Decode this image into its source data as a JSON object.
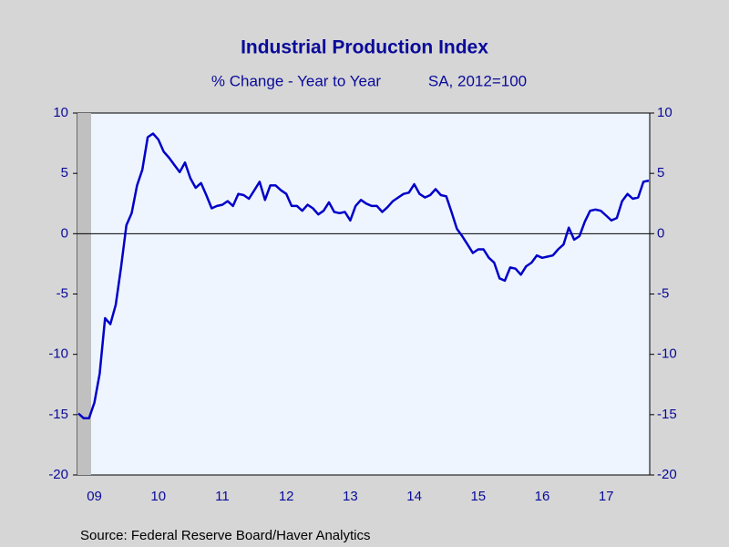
{
  "chart_data": {
    "type": "line",
    "title": "Industrial Production Index",
    "subtitle": "% Change - Year to Year",
    "subtitle_note": "SA, 2012=100",
    "source": "Source:  Federal Reserve Board/Haver Analytics",
    "categories": [
      null,
      null,
      null,
      "09",
      null,
      null,
      null,
      null,
      null,
      null,
      null,
      null,
      null,
      null,
      null,
      "10",
      null,
      null,
      null,
      null,
      null,
      null,
      null,
      null,
      null,
      null,
      null,
      "11",
      null,
      null,
      null,
      null,
      null,
      null,
      null,
      null,
      null,
      null,
      null,
      "12",
      null,
      null,
      null,
      null,
      null,
      null,
      null,
      null,
      null,
      null,
      null,
      "13",
      null,
      null,
      null,
      null,
      null,
      null,
      null,
      null,
      null,
      null,
      null,
      "14",
      null,
      null,
      null,
      null,
      null,
      null,
      null,
      null,
      null,
      null,
      null,
      "15",
      null,
      null,
      null,
      null,
      null,
      null,
      null,
      null,
      null,
      null,
      null,
      "16",
      null,
      null,
      null,
      null,
      null,
      null,
      null,
      null,
      null,
      null,
      null,
      "17",
      null,
      null,
      null,
      null,
      null,
      null,
      null,
      null
    ],
    "series": [
      {
        "name": "Industrial Production Index",
        "color": "#0000c8",
        "values": [
          -14.9,
          -15.3,
          -15.3,
          -14.0,
          -11.6,
          -7.0,
          -7.5,
          -5.9,
          -2.8,
          0.7,
          1.7,
          4.0,
          5.3,
          8.0,
          8.3,
          7.8,
          6.8,
          6.3,
          5.7,
          5.1,
          5.9,
          4.6,
          3.8,
          4.2,
          3.2,
          2.1,
          2.3,
          2.4,
          2.7,
          2.3,
          3.3,
          3.2,
          2.9,
          3.6,
          4.3,
          2.8,
          4.0,
          4.0,
          3.6,
          3.3,
          2.3,
          2.3,
          1.9,
          2.4,
          2.1,
          1.6,
          1.9,
          2.6,
          1.8,
          1.7,
          1.8,
          1.1,
          2.3,
          2.8,
          2.5,
          2.3,
          2.3,
          1.8,
          2.2,
          2.7,
          3.0,
          3.3,
          3.4,
          4.1,
          3.3,
          3.0,
          3.2,
          3.7,
          3.2,
          3.1,
          1.8,
          0.4,
          -0.2,
          -0.9,
          -1.6,
          -1.3,
          -1.3,
          -2.0,
          -2.4,
          -3.7,
          -3.9,
          -2.8,
          -2.9,
          -3.4,
          -2.7,
          -2.4,
          -1.8,
          -2.0,
          -1.9,
          -1.8,
          -1.3,
          -0.9,
          0.5,
          -0.5,
          -0.2,
          1.0,
          1.9,
          2.0,
          1.9,
          1.5,
          1.1,
          1.3,
          2.7,
          3.3,
          2.9,
          3.0,
          4.3,
          4.4
        ]
      }
    ],
    "ylim": [
      -20,
      10
    ],
    "yticks": [
      10,
      5,
      0,
      -5,
      -10,
      -15,
      -20
    ]
  }
}
